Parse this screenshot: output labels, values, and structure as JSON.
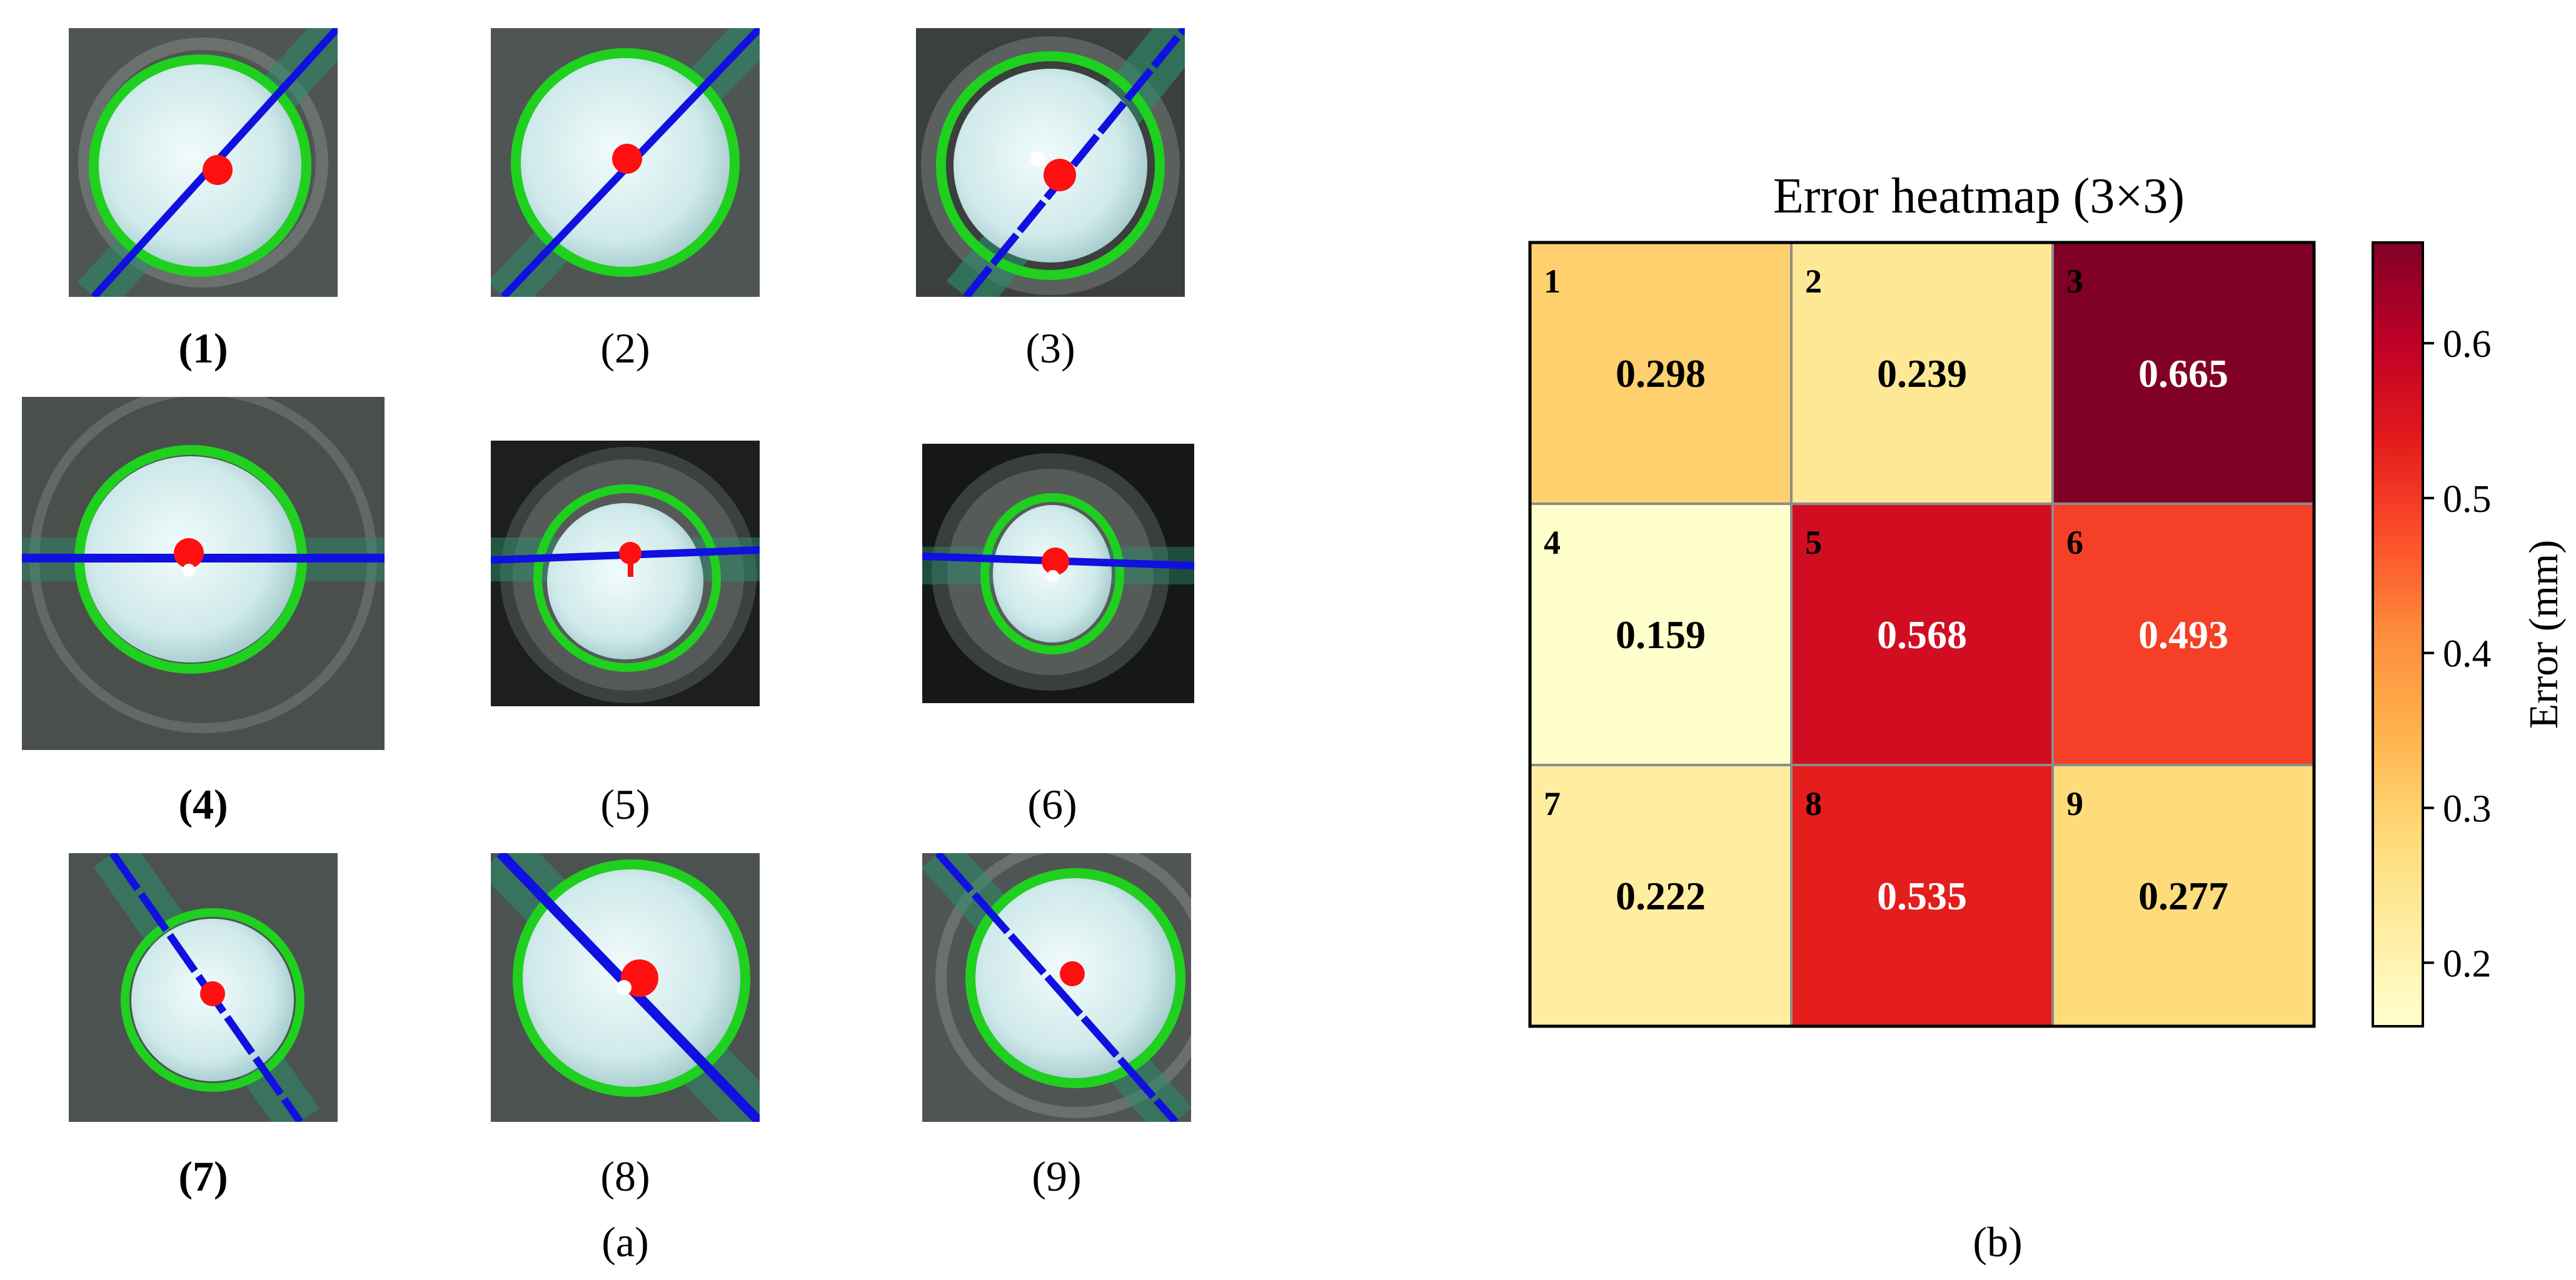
{
  "panel_a": {
    "caption": "(a)",
    "tiles": [
      {
        "id": 1,
        "label": "(1)",
        "bold": true,
        "line_angle_deg": -52
      },
      {
        "id": 2,
        "label": "(2)",
        "bold": false,
        "line_angle_deg": -52
      },
      {
        "id": 3,
        "label": "(3)",
        "bold": false,
        "line_angle_deg": -52
      },
      {
        "id": 4,
        "label": "(4)",
        "bold": true,
        "line_angle_deg": 0
      },
      {
        "id": 5,
        "label": "(5)",
        "bold": false,
        "line_angle_deg": -1
      },
      {
        "id": 6,
        "label": "(6)",
        "bold": false,
        "line_angle_deg": 1
      },
      {
        "id": 7,
        "label": "(7)",
        "bold": true,
        "line_angle_deg": 55
      },
      {
        "id": 8,
        "label": "(8)",
        "bold": false,
        "line_angle_deg": 50
      },
      {
        "id": 9,
        "label": "(9)",
        "bold": false,
        "line_angle_deg": 50
      }
    ],
    "colors": {
      "circle": "#1fd01f",
      "line": "#1010e0",
      "center": "#ff1010",
      "background": "#4a4f4c",
      "pad": "#d8eeee"
    }
  },
  "panel_b": {
    "caption": "(b)"
  },
  "chart_data": {
    "type": "heatmap",
    "title": "Error heatmap (3×3)",
    "rows": 3,
    "cols": 3,
    "cells": [
      {
        "id": "1",
        "value": 0.298,
        "label": "0.298"
      },
      {
        "id": "2",
        "value": 0.239,
        "label": "0.239"
      },
      {
        "id": "3",
        "value": 0.665,
        "label": "0.665"
      },
      {
        "id": "4",
        "value": 0.159,
        "label": "0.159"
      },
      {
        "id": "5",
        "value": 0.568,
        "label": "0.568"
      },
      {
        "id": "6",
        "value": 0.493,
        "label": "0.493"
      },
      {
        "id": "7",
        "value": 0.222,
        "label": "0.222"
      },
      {
        "id": "8",
        "value": 0.535,
        "label": "0.535"
      },
      {
        "id": "9",
        "value": 0.277,
        "label": "0.277"
      }
    ],
    "colorbar": {
      "label": "Error (mm)",
      "min": 0.159,
      "max": 0.665,
      "ticks": [
        {
          "value": 0.2,
          "label": "0.2"
        },
        {
          "value": 0.3,
          "label": "0.3"
        },
        {
          "value": 0.4,
          "label": "0.4"
        },
        {
          "value": 0.5,
          "label": "0.5"
        },
        {
          "value": 0.6,
          "label": "0.6"
        }
      ]
    },
    "colormap": "YlOrRd",
    "light_text_color": "#ffffff",
    "dark_text_color": "#000000"
  }
}
